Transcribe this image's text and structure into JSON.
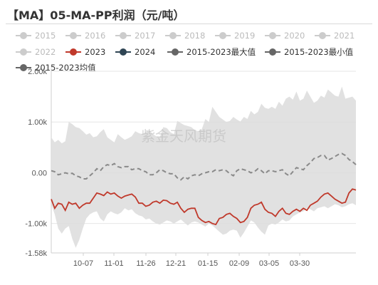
{
  "title": "【MA】05-MA-PP利润（元/吨）",
  "watermark": "紫金天风期货",
  "chart_data": {
    "type": "line",
    "title": "【MA】05-MA-PP利润（元/吨）",
    "xlabel": "",
    "ylabel": "",
    "ylim": [
      -1580,
      2000
    ],
    "yticks": [
      -1580,
      -1000,
      0,
      1000,
      2000
    ],
    "ytick_labels": [
      "-1.58k",
      "-1.00k",
      "0.00",
      "1.00k",
      "2.00k"
    ],
    "x_tick_labels": [
      "10-07",
      "11-01",
      "11-26",
      "12-21",
      "01-15",
      "02-09",
      "03-05",
      "03-30"
    ],
    "grid": true,
    "legend_position": "top",
    "legend": [
      {
        "name": "2015",
        "color": "#cccccc",
        "marker": "circle-line",
        "active": false
      },
      {
        "name": "2016",
        "color": "#cccccc",
        "marker": "circle-line",
        "active": false
      },
      {
        "name": "2017",
        "color": "#cccccc",
        "marker": "circle-line",
        "active": false
      },
      {
        "name": "2018",
        "color": "#cccccc",
        "marker": "circle-line",
        "active": false
      },
      {
        "name": "2019",
        "color": "#cccccc",
        "marker": "circle-line",
        "active": false
      },
      {
        "name": "2020",
        "color": "#cccccc",
        "marker": "circle-line",
        "active": false
      },
      {
        "name": "2021",
        "color": "#cccccc",
        "marker": "circle-line",
        "active": false
      },
      {
        "name": "2022",
        "color": "#cccccc",
        "marker": "circle-line",
        "active": false
      },
      {
        "name": "2023",
        "color": "#c0392b",
        "marker": "circle-line",
        "active": true
      },
      {
        "name": "2024",
        "color": "#2f4554",
        "marker": "circle-line",
        "active": true
      },
      {
        "name": "2015-2023最大值",
        "color": "#666666",
        "marker": "circle-line",
        "active": true
      },
      {
        "name": "2015-2023最小值",
        "color": "#666666",
        "marker": "circle-line",
        "active": true
      },
      {
        "name": "2015-2023均值",
        "color": "#666666",
        "marker": "circle-line",
        "active": true
      }
    ],
    "band_max": [
      700,
      600,
      650,
      580,
      620,
      1000,
      960,
      900,
      880,
      820,
      750,
      780,
      700,
      720,
      800,
      860,
      700,
      650,
      600,
      760,
      700,
      650,
      680,
      720,
      820,
      780,
      760,
      800,
      840,
      760,
      720,
      700,
      900,
      880,
      800,
      760,
      1020,
      980,
      940,
      920,
      900,
      840,
      820,
      860,
      1060,
      1000,
      1300,
      1200,
      1100,
      1050,
      1000,
      1020,
      1100,
      1050,
      1010,
      1100,
      1060,
      1220,
      1150,
      1200,
      1360,
      1280,
      1260,
      1300,
      1260,
      1400,
      1320,
      1460,
      1500,
      1440,
      1600,
      1420,
      1460,
      1620,
      1500,
      1380,
      1420,
      1520,
      1480,
      1640,
      1580,
      1520,
      1500,
      1700,
      1460,
      1480,
      1500,
      1420
    ],
    "band_min": [
      -620,
      -820,
      -1100,
      -1200,
      -1100,
      -1050,
      -1300,
      -1480,
      -1320,
      -1100,
      -900,
      -820,
      -780,
      -760,
      -900,
      -960,
      -820,
      -760,
      -800,
      -820,
      -780,
      -700,
      -740,
      -720,
      -800,
      -840,
      -860,
      -920,
      -900,
      -960,
      -1000,
      -1020,
      -980,
      -940,
      -960,
      -1000,
      -960,
      -920,
      -980,
      -1040,
      -980,
      -960,
      -980,
      -1020,
      -1060,
      -1000,
      -1040,
      -1100,
      -1160,
      -1220,
      -1200,
      -1140,
      -1120,
      -1140,
      -1280,
      -1180,
      -1060,
      -940,
      -980,
      -1080,
      -1160,
      -1220,
      -1040,
      -1000,
      -1020,
      -980,
      -920,
      -960,
      -940,
      -860,
      -820,
      -780,
      -760,
      -700,
      -720,
      -760,
      -700,
      -680,
      -660,
      -700,
      -660,
      -620,
      -640,
      -680,
      -660,
      -620,
      -600,
      -640
    ],
    "series": [
      {
        "name": "2015-2023均值",
        "color": "#8a8a8a",
        "style": "dashed",
        "values": [
          40,
          20,
          -40,
          -20,
          0,
          -20,
          -10,
          -60,
          -80,
          -120,
          -120,
          -60,
          0,
          80,
          40,
          120,
          160,
          140,
          180,
          120,
          100,
          120,
          120,
          60,
          80,
          80,
          40,
          20,
          -40,
          -40,
          0,
          60,
          40,
          0,
          -20,
          -20,
          -100,
          -140,
          -80,
          -120,
          -60,
          -40,
          -60,
          -20,
          0,
          20,
          20,
          60,
          40,
          60,
          40,
          -20,
          -60,
          40,
          80,
          60,
          40,
          0,
          20,
          80,
          40,
          -20,
          40,
          40,
          20,
          40,
          60,
          -20,
          -60,
          20,
          100,
          80,
          60,
          140,
          200,
          280,
          300,
          340,
          340,
          250,
          280,
          320,
          360,
          380,
          340,
          260,
          220,
          160
        ]
      },
      {
        "name": "2023",
        "color": "#c0392b",
        "style": "solid",
        "values": [
          -520,
          -700,
          -600,
          -620,
          -740,
          -580,
          -620,
          -600,
          -700,
          -640,
          -600,
          -600,
          -500,
          -400,
          -420,
          -450,
          -380,
          -420,
          -400,
          -460,
          -500,
          -460,
          -440,
          -420,
          -480,
          -600,
          -600,
          -660,
          -640,
          -580,
          -560,
          -600,
          -540,
          -550,
          -600,
          -620,
          -580,
          -700,
          -780,
          -720,
          -700,
          -700,
          -880,
          -940,
          -980,
          -960,
          -1000,
          -1020,
          -900,
          -880,
          -820,
          -800,
          -860,
          -900,
          -980,
          -960,
          -880,
          -700,
          -640,
          -620,
          -580,
          -720,
          -780,
          -800,
          -860,
          -760,
          -700,
          -800,
          -820,
          -760,
          -720,
          -760,
          -700,
          -740,
          -640,
          -600,
          -560,
          -480,
          -420,
          -400,
          -460,
          -520,
          -560,
          -600,
          -580,
          -400,
          -320,
          -340
        ]
      }
    ]
  }
}
